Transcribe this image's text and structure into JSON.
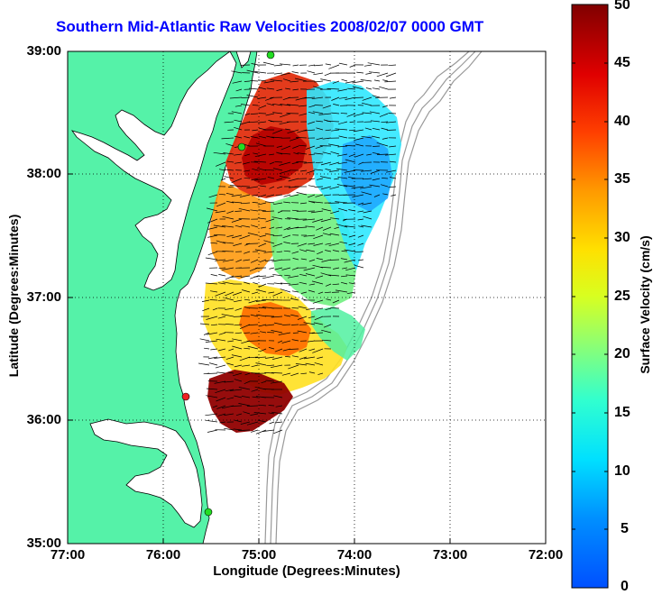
{
  "title": "Southern Mid-Atlantic Raw Velocities 2008/02/07 0000 GMT",
  "xlabel": "Longitude (Degrees:Minutes)",
  "ylabel": "Latitude (Degrees:Minutes)",
  "colorbar_label": "Surface Velocity (cm/s)",
  "x_ticks": [
    "77:00",
    "76:00",
    "75:00",
    "74:00",
    "73:00",
    "72:00"
  ],
  "y_ticks": [
    "39:00",
    "38:00",
    "37:00",
    "36:00",
    "35:00"
  ],
  "colorbar_ticks": [
    "50",
    "45",
    "40",
    "35",
    "30",
    "25",
    "20",
    "15",
    "10",
    "5",
    "0"
  ],
  "colors": {
    "title": "#0000ff",
    "land": "#55f2a8",
    "ocean": "#ffffff",
    "bathymetry": "#999999",
    "site_green": "#22dd22",
    "site_red": "#ee2222"
  },
  "chart_data": {
    "type": "heatmap",
    "title": "Southern Mid-Atlantic Raw Velocities 2008/02/07 0000 GMT",
    "xlabel": "Longitude (Degrees:Minutes)",
    "ylabel": "Latitude (Degrees:Minutes)",
    "xlim": [
      -77,
      -72
    ],
    "ylim": [
      35,
      39
    ],
    "color_range": [
      0,
      50
    ],
    "colormap": "jet",
    "grid": true,
    "colorbar_placement": "right",
    "sites": [
      {
        "lon": -74.88,
        "lat": 38.99,
        "color": "green"
      },
      {
        "lon": -74.9,
        "lat": 38.2,
        "color": "green"
      },
      {
        "lon": -75.7,
        "lat": 36.2,
        "color": "red"
      },
      {
        "lon": -75.5,
        "lat": 35.25,
        "color": "green"
      }
    ]
  }
}
